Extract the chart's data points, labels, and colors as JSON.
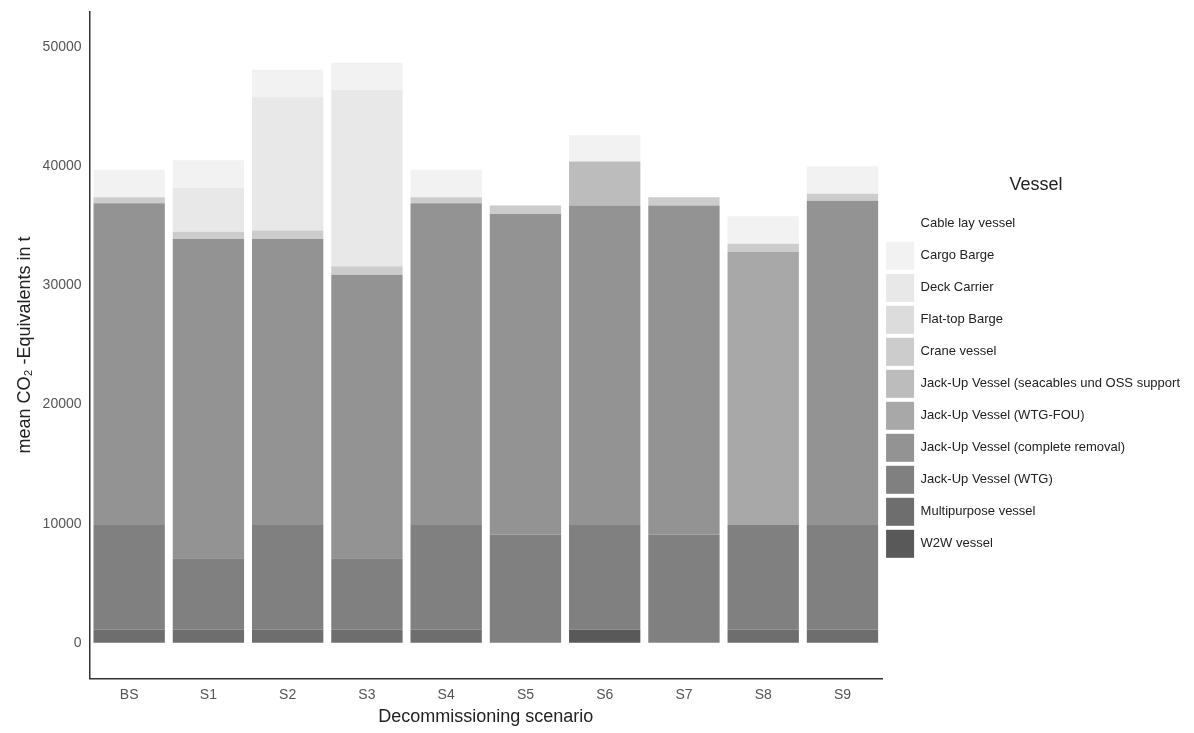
{
  "chart_data": {
    "type": "bar",
    "stacked": true,
    "xlabel": "Decommissioning scenario",
    "ylabel": "mean CO₂ -Equivalents in t",
    "legend_title": "Vessel",
    "legend": "right",
    "grid": false,
    "categories": [
      "BS",
      "S1",
      "S2",
      "S3",
      "S4",
      "S5",
      "S6",
      "S7",
      "S8",
      "S9"
    ],
    "ylim": [
      -3000,
      53000
    ],
    "yticks": [
      0,
      10000,
      20000,
      30000,
      40000,
      50000
    ],
    "series": [
      {
        "name": "W2W vessel",
        "color": "#595959",
        "values": [
          null,
          null,
          null,
          null,
          null,
          null,
          1100,
          null,
          null,
          null
        ]
      },
      {
        "name": "Multipurpose vessel",
        "color": "#6e6e6e",
        "values": [
          1100,
          1100,
          1100,
          1100,
          1100,
          null,
          null,
          null,
          1100,
          1100
        ]
      },
      {
        "name": "Jack-Up Vessel (WTG)",
        "color": "#808080",
        "values": [
          8800,
          6000,
          8800,
          6000,
          8800,
          9100,
          8800,
          9100,
          8800,
          8800
        ]
      },
      {
        "name": "Jack-Up Vessel (complete removal)",
        "color": "#939393",
        "values": [
          27000,
          26800,
          24000,
          23800,
          27000,
          26900,
          26800,
          27600,
          null,
          27200
        ]
      },
      {
        "name": "Jack-Up Vessel (WTG-FOU)",
        "color": "#a8a8a8",
        "values": [
          null,
          null,
          null,
          null,
          null,
          null,
          null,
          null,
          22900,
          null
        ]
      },
      {
        "name": "Jack-Up Vessel (seacables und OSS support",
        "color": "#bcbcbc",
        "values": [
          null,
          null,
          null,
          null,
          null,
          null,
          3700,
          null,
          null,
          null
        ]
      },
      {
        "name": "Crane vessel",
        "color": "#cccccc",
        "values": [
          500,
          600,
          700,
          700,
          500,
          700,
          null,
          700,
          700,
          600
        ]
      },
      {
        "name": "Flat-top Barge",
        "color": "#dcdcdc",
        "values": [
          null,
          null,
          null,
          null,
          null,
          null,
          null,
          null,
          null,
          null
        ]
      },
      {
        "name": "Deck Carrier",
        "color": "#e8e8e8",
        "values": [
          null,
          3700,
          11200,
          14800,
          null,
          null,
          null,
          null,
          null,
          null
        ]
      },
      {
        "name": "Cargo Barge",
        "color": "#f2f2f2",
        "values": [
          2300,
          2300,
          2300,
          2300,
          2300,
          null,
          2200,
          null,
          2300,
          2300
        ]
      },
      {
        "name": "Cable lay vessel",
        "values": [
          null,
          null,
          null,
          null,
          null,
          null,
          null,
          null,
          null,
          null
        ]
      }
    ]
  }
}
